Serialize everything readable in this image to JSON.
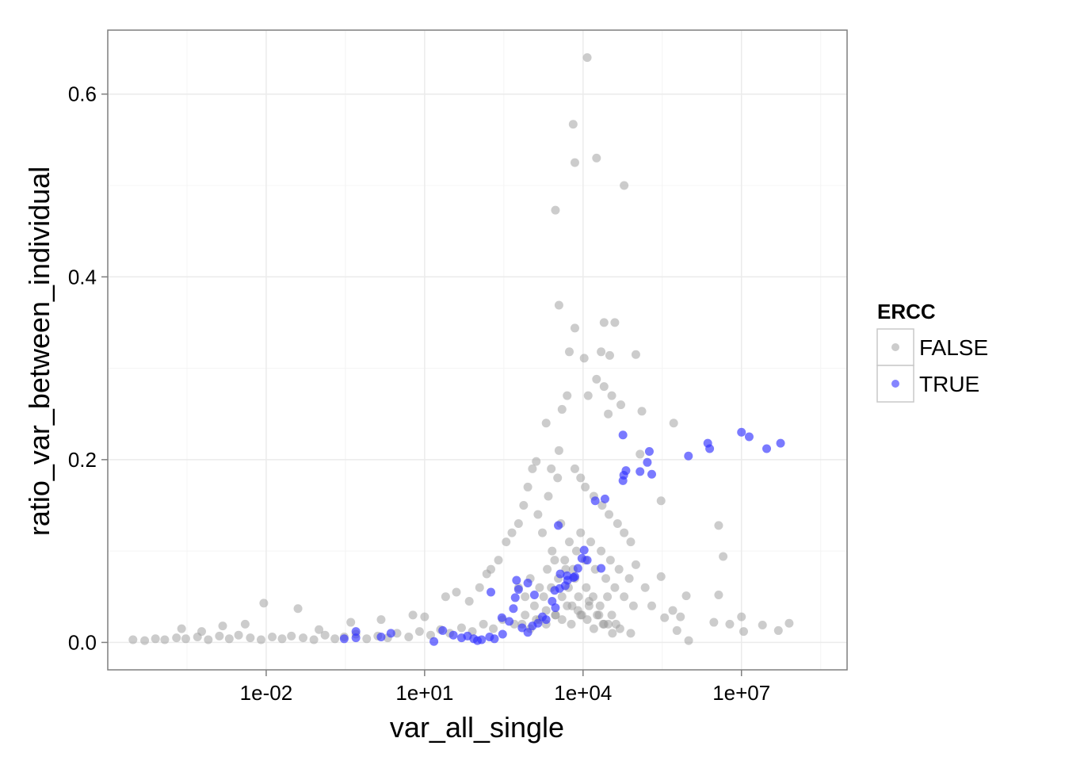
{
  "chart_data": {
    "type": "scatter",
    "title": "",
    "xlabel": "var_all_single",
    "ylabel": "ratio_var_between_individual",
    "x_scale": "log10",
    "xlim": [
      1e-05,
      1000000000.0
    ],
    "ylim": [
      -0.03,
      0.67
    ],
    "x_ticks": [
      0.01,
      10,
      10000,
      10000000
    ],
    "x_tick_labels": [
      "1e-02",
      "1e+01",
      "1e+04",
      "1e+07"
    ],
    "y_ticks": [
      0.0,
      0.2,
      0.4,
      0.6
    ],
    "y_tick_labels": [
      "0.0",
      "0.2",
      "0.4",
      "0.6"
    ],
    "grid": true,
    "legend": {
      "title": "ERCC",
      "placement": "right",
      "entries": [
        {
          "label": "FALSE",
          "color": "#999999"
        },
        {
          "label": "TRUE",
          "color": "#3333ff"
        }
      ]
    },
    "series": [
      {
        "name": "FALSE",
        "color": "#999999",
        "points": [
          [
            3e-05,
            0.003
          ],
          [
            5e-05,
            0.002
          ],
          [
            8e-05,
            0.004
          ],
          [
            0.00012,
            0.003
          ],
          [
            0.0002,
            0.005
          ],
          [
            0.0003,
            0.004
          ],
          [
            0.0005,
            0.006
          ],
          [
            0.0008,
            0.003
          ],
          [
            0.0013,
            0.007
          ],
          [
            0.002,
            0.004
          ],
          [
            0.003,
            0.008
          ],
          [
            0.005,
            0.005
          ],
          [
            0.008,
            0.003
          ],
          [
            0.013,
            0.006
          ],
          [
            0.02,
            0.004
          ],
          [
            0.03,
            0.007
          ],
          [
            0.05,
            0.005
          ],
          [
            0.08,
            0.003
          ],
          [
            0.13,
            0.008
          ],
          [
            0.2,
            0.004
          ],
          [
            0.3,
            0.006
          ],
          [
            0.5,
            0.009
          ],
          [
            0.8,
            0.004
          ],
          [
            1.3,
            0.007
          ],
          [
            2,
            0.005
          ],
          [
            3,
            0.01
          ],
          [
            5,
            0.006
          ],
          [
            8,
            0.012
          ],
          [
            13,
            0.008
          ],
          [
            20,
            0.014
          ],
          [
            30,
            0.01
          ],
          [
            50,
            0.016
          ],
          [
            80,
            0.012
          ],
          [
            130,
            0.02
          ],
          [
            200,
            0.015
          ],
          [
            300,
            0.025
          ],
          [
            500,
            0.02
          ],
          [
            800,
            0.03
          ],
          [
            1300,
            0.025
          ],
          [
            2000,
            0.035
          ],
          [
            3000,
            0.03
          ],
          [
            5000,
            0.04
          ],
          [
            8000,
            0.035
          ],
          [
            13000,
            0.045
          ],
          [
            20000,
            0.03
          ],
          [
            30000,
            0.02
          ],
          [
            50000,
            0.015
          ],
          [
            80000,
            0.01
          ],
          [
            0.00025,
            0.015
          ],
          [
            0.0006,
            0.012
          ],
          [
            0.0015,
            0.018
          ],
          [
            0.004,
            0.02
          ],
          [
            0.009,
            0.043
          ],
          [
            0.04,
            0.037
          ],
          [
            0.1,
            0.014
          ],
          [
            0.4,
            0.022
          ],
          [
            1.5,
            0.025
          ],
          [
            6,
            0.03
          ],
          [
            10,
            0.028
          ],
          [
            25,
            0.05
          ],
          [
            40,
            0.055
          ],
          [
            70,
            0.045
          ],
          [
            110,
            0.06
          ],
          [
            150,
            0.075
          ],
          [
            180,
            0.08
          ],
          [
            250,
            0.09
          ],
          [
            350,
            0.11
          ],
          [
            450,
            0.12
          ],
          [
            600,
            0.13
          ],
          [
            750,
            0.15
          ],
          [
            900,
            0.17
          ],
          [
            1100,
            0.19
          ],
          [
            1400,
            0.14
          ],
          [
            1700,
            0.12
          ],
          [
            2200,
            0.16
          ],
          [
            2600,
            0.1
          ],
          [
            3300,
            0.18
          ],
          [
            3800,
            0.13
          ],
          [
            4500,
            0.09
          ],
          [
            5500,
            0.11
          ],
          [
            6500,
            0.08
          ],
          [
            7500,
            0.1
          ],
          [
            9000,
            0.12
          ],
          [
            11000,
            0.09
          ],
          [
            14000,
            0.11
          ],
          [
            17000,
            0.08
          ],
          [
            22000,
            0.1
          ],
          [
            27000,
            0.07
          ],
          [
            33000,
            0.09
          ],
          [
            40000,
            0.06
          ],
          [
            48000,
            0.08
          ],
          [
            60000,
            0.05
          ],
          [
            75000,
            0.07
          ],
          [
            90000,
            0.04
          ],
          [
            600,
            0.06
          ],
          [
            800,
            0.05
          ],
          [
            1000,
            0.07
          ],
          [
            1200,
            0.04
          ],
          [
            1500,
            0.06
          ],
          [
            1800,
            0.05
          ],
          [
            2100,
            0.08
          ],
          [
            2500,
            0.06
          ],
          [
            2900,
            0.09
          ],
          [
            3400,
            0.07
          ],
          [
            4000,
            0.05
          ],
          [
            4700,
            0.08
          ],
          [
            5300,
            0.06
          ],
          [
            6200,
            0.04
          ],
          [
            7000,
            0.07
          ],
          [
            8200,
            0.05
          ],
          [
            9500,
            0.03
          ],
          [
            11500,
            0.06
          ],
          [
            13000,
            0.04
          ],
          [
            15500,
            0.05
          ],
          [
            18500,
            0.03
          ],
          [
            21000,
            0.04
          ],
          [
            25000,
            0.02
          ],
          [
            29000,
            0.05
          ],
          [
            35000,
            0.03
          ],
          [
            42000,
            0.02
          ],
          [
            700,
            0.02
          ],
          [
            1000,
            0.015
          ],
          [
            1500,
            0.025
          ],
          [
            2000,
            0.02
          ],
          [
            3000,
            0.03
          ],
          [
            4000,
            0.025
          ],
          [
            6000,
            0.02
          ],
          [
            9000,
            0.03
          ],
          [
            12000,
            0.025
          ],
          [
            16000,
            0.015
          ],
          [
            24000,
            0.02
          ],
          [
            36000,
            0.01
          ],
          [
            12000,
            0.64
          ],
          [
            6500,
            0.567
          ],
          [
            7000,
            0.525
          ],
          [
            18000,
            0.53
          ],
          [
            60000,
            0.5
          ],
          [
            3000,
            0.473
          ],
          [
            3500,
            0.369
          ],
          [
            7000,
            0.344
          ],
          [
            25000,
            0.35
          ],
          [
            40000,
            0.35
          ],
          [
            5500,
            0.318
          ],
          [
            10500,
            0.311
          ],
          [
            22000,
            0.318
          ],
          [
            32000,
            0.314
          ],
          [
            100000,
            0.315
          ],
          [
            18000,
            0.288
          ],
          [
            25000,
            0.28
          ],
          [
            35000,
            0.27
          ],
          [
            5000,
            0.27
          ],
          [
            4000,
            0.255
          ],
          [
            12500,
            0.27
          ],
          [
            30000,
            0.25
          ],
          [
            52000,
            0.26
          ],
          [
            130000,
            0.253
          ],
          [
            520000,
            0.24
          ],
          [
            2000,
            0.24
          ],
          [
            3500,
            0.21
          ],
          [
            2500,
            0.19
          ],
          [
            1300,
            0.198
          ],
          [
            120000,
            0.206
          ],
          [
            7000,
            0.19
          ],
          [
            9000,
            0.18
          ],
          [
            11000,
            0.17
          ],
          [
            16000,
            0.16
          ],
          [
            23000,
            0.15
          ],
          [
            31000,
            0.14
          ],
          [
            45000,
            0.13
          ],
          [
            60000,
            0.12
          ],
          [
            80000,
            0.11
          ],
          [
            300000,
            0.155
          ],
          [
            3700000,
            0.128
          ],
          [
            4500000,
            0.094
          ],
          [
            3700000,
            0.052
          ],
          [
            6000000,
            0.02
          ],
          [
            11000000.0,
            0.012
          ],
          [
            25000000.0,
            0.019
          ],
          [
            50000000.0,
            0.013
          ],
          [
            80000000.0,
            0.021
          ],
          [
            10000000.0,
            0.028
          ],
          [
            3000000,
            0.022
          ],
          [
            1000000,
            0.002
          ],
          [
            600000,
            0.013
          ],
          [
            700000,
            0.028
          ],
          [
            350000,
            0.027
          ],
          [
            200000,
            0.04
          ],
          [
            150000,
            0.06
          ],
          [
            500000,
            0.035
          ],
          [
            300000,
            0.072
          ],
          [
            100000,
            0.085
          ],
          [
            900000,
            0.051
          ]
        ]
      },
      {
        "name": "TRUE",
        "color": "#3333ff",
        "points": [
          [
            0.3,
            0.004
          ],
          [
            0.5,
            0.005
          ],
          [
            0.5,
            0.012
          ],
          [
            1.5,
            0.006
          ],
          [
            2.3,
            0.01
          ],
          [
            15,
            0.001
          ],
          [
            22,
            0.013
          ],
          [
            35,
            0.008
          ],
          [
            50,
            0.005
          ],
          [
            65,
            0.007
          ],
          [
            85,
            0.004
          ],
          [
            100,
            0.002
          ],
          [
            120,
            0.003
          ],
          [
            170,
            0.006
          ],
          [
            210,
            0.004
          ],
          [
            300,
            0.009
          ],
          [
            290,
            0.027
          ],
          [
            400,
            0.023
          ],
          [
            480,
            0.037
          ],
          [
            520,
            0.049
          ],
          [
            600,
            0.058
          ],
          [
            550,
            0.068
          ],
          [
            700,
            0.016
          ],
          [
            900,
            0.011
          ],
          [
            1100,
            0.018
          ],
          [
            1400,
            0.021
          ],
          [
            1700,
            0.028
          ],
          [
            2000,
            0.025
          ],
          [
            2600,
            0.045
          ],
          [
            2900,
            0.057
          ],
          [
            3600,
            0.059
          ],
          [
            3000,
            0.038
          ],
          [
            4600,
            0.062
          ],
          [
            5100,
            0.068
          ],
          [
            6600,
            0.071
          ],
          [
            7000,
            0.072
          ],
          [
            5000,
            0.073
          ],
          [
            3700,
            0.075
          ],
          [
            8000,
            0.081
          ],
          [
            9500,
            0.092
          ],
          [
            10500,
            0.101
          ],
          [
            3400,
            0.128
          ],
          [
            17000,
            0.155
          ],
          [
            26000,
            0.157
          ],
          [
            57000,
            0.177
          ],
          [
            59000,
            0.183
          ],
          [
            65000,
            0.188
          ],
          [
            57000,
            0.227
          ],
          [
            120000,
            0.187
          ],
          [
            165000,
            0.197
          ],
          [
            200000,
            0.184
          ],
          [
            180000,
            0.209
          ],
          [
            990000,
            0.204
          ],
          [
            2300000,
            0.218
          ],
          [
            2500000,
            0.212
          ],
          [
            10000000.0,
            0.23
          ],
          [
            14000000.0,
            0.225
          ],
          [
            30000000.0,
            0.212
          ],
          [
            55000000.0,
            0.218
          ],
          [
            12000.0,
            0.09
          ],
          [
            22000.0,
            0.081
          ],
          [
            180,
            0.055
          ],
          [
            900,
            0.065
          ],
          [
            1200,
            0.052
          ]
        ]
      }
    ]
  }
}
